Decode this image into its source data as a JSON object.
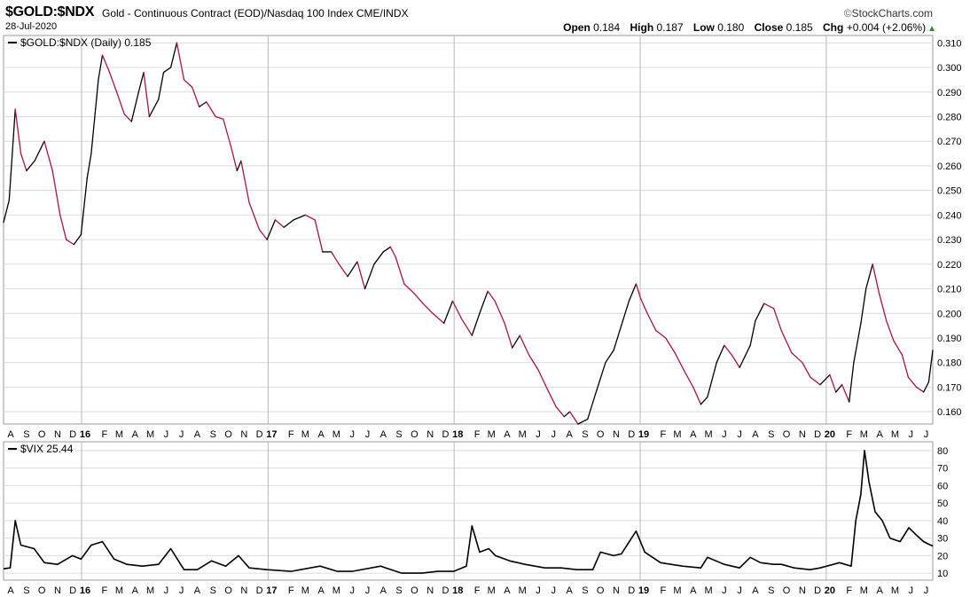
{
  "header": {
    "symbol": "$GOLD:$NDX",
    "description": "Gold - Continuous Contract (EOD)/Nasdaq 100 Index",
    "exchange": "CME/INDX",
    "date": "28-Jul-2020",
    "brand": "StockCharts.com",
    "brand_mark": "©",
    "ohlc": {
      "open_label": "Open",
      "open": "0.184",
      "high_label": "High",
      "high": "0.187",
      "low_label": "Low",
      "low": "0.180",
      "close_label": "Close",
      "close": "0.185",
      "chg_label": "Chg",
      "chg": "+0.004 (+2.06%)"
    },
    "change_direction": "up"
  },
  "chart_data": [
    {
      "type": "line",
      "legend": "$GOLD:$NDX (Daily) 0.185",
      "color_up": "#000000",
      "color_down": "#a8153a",
      "ylim": [
        0.155,
        0.313
      ],
      "yticks": [
        0.16,
        0.17,
        0.18,
        0.19,
        0.2,
        0.21,
        0.22,
        0.23,
        0.24,
        0.25,
        0.26,
        0.27,
        0.28,
        0.29,
        0.3,
        0.31
      ],
      "ytick_labels": [
        "0.160",
        "0.170",
        "0.180",
        "0.190",
        "0.200",
        "0.210",
        "0.220",
        "0.230",
        "0.240",
        "0.250",
        "0.260",
        "0.270",
        "0.280",
        "0.290",
        "0.300",
        "0.310"
      ],
      "xlim": [
        "2015-08-01",
        "2020-07-28"
      ],
      "x": [
        "2015-08-01",
        "2015-08-12",
        "2015-08-24",
        "2015-09-04",
        "2015-09-15",
        "2015-10-01",
        "2015-10-20",
        "2015-11-05",
        "2015-11-20",
        "2015-12-02",
        "2015-12-17",
        "2015-12-31",
        "2016-01-12",
        "2016-01-20",
        "2016-02-03",
        "2016-02-11",
        "2016-02-25",
        "2016-03-10",
        "2016-03-25",
        "2016-04-08",
        "2016-04-22",
        "2016-05-02",
        "2016-05-13",
        "2016-05-31",
        "2016-06-10",
        "2016-06-24",
        "2016-07-06",
        "2016-07-20",
        "2016-08-05",
        "2016-08-19",
        "2016-09-02",
        "2016-09-20",
        "2016-10-05",
        "2016-10-20",
        "2016-11-01",
        "2016-11-09",
        "2016-11-25",
        "2016-12-15",
        "2016-12-30",
        "2017-01-15",
        "2017-02-01",
        "2017-02-20",
        "2017-03-15",
        "2017-04-03",
        "2017-04-18",
        "2017-05-05",
        "2017-05-20",
        "2017-06-06",
        "2017-06-25",
        "2017-07-10",
        "2017-07-28",
        "2017-08-15",
        "2017-08-29",
        "2017-09-08",
        "2017-09-25",
        "2017-10-15",
        "2017-11-01",
        "2017-11-20",
        "2017-12-12",
        "2017-12-29",
        "2018-01-15",
        "2018-02-05",
        "2018-02-20",
        "2018-03-08",
        "2018-03-22",
        "2018-04-10",
        "2018-04-25",
        "2018-05-10",
        "2018-05-28",
        "2018-06-15",
        "2018-07-01",
        "2018-07-20",
        "2018-08-05",
        "2018-08-16",
        "2018-09-01",
        "2018-09-20",
        "2018-10-05",
        "2018-10-25",
        "2018-11-10",
        "2018-11-25",
        "2018-12-10",
        "2018-12-24",
        "2019-01-02",
        "2019-01-15",
        "2019-02-01",
        "2019-02-20",
        "2019-03-10",
        "2019-03-30",
        "2019-04-15",
        "2019-04-30",
        "2019-05-13",
        "2019-05-31",
        "2019-06-15",
        "2019-06-30",
        "2019-07-15",
        "2019-08-05",
        "2019-08-15",
        "2019-09-01",
        "2019-09-20",
        "2019-10-05",
        "2019-10-25",
        "2019-11-15",
        "2019-12-01",
        "2019-12-20",
        "2020-01-08",
        "2020-01-20",
        "2020-02-01",
        "2020-02-15",
        "2020-02-24",
        "2020-03-09",
        "2020-03-19",
        "2020-04-01",
        "2020-04-14",
        "2020-04-28",
        "2020-05-12",
        "2020-05-29",
        "2020-06-10",
        "2020-06-26",
        "2020-07-10",
        "2020-07-20",
        "2020-07-28"
      ],
      "values": [
        0.237,
        0.246,
        0.283,
        0.265,
        0.258,
        0.262,
        0.27,
        0.258,
        0.24,
        0.23,
        0.228,
        0.232,
        0.255,
        0.265,
        0.295,
        0.305,
        0.298,
        0.29,
        0.281,
        0.278,
        0.29,
        0.298,
        0.28,
        0.287,
        0.298,
        0.3,
        0.31,
        0.295,
        0.292,
        0.284,
        0.286,
        0.28,
        0.279,
        0.268,
        0.258,
        0.262,
        0.245,
        0.234,
        0.23,
        0.238,
        0.235,
        0.238,
        0.24,
        0.238,
        0.225,
        0.225,
        0.22,
        0.215,
        0.221,
        0.21,
        0.22,
        0.225,
        0.227,
        0.223,
        0.212,
        0.208,
        0.204,
        0.2,
        0.196,
        0.205,
        0.198,
        0.191,
        0.2,
        0.209,
        0.205,
        0.196,
        0.186,
        0.191,
        0.183,
        0.177,
        0.17,
        0.162,
        0.158,
        0.16,
        0.155,
        0.157,
        0.167,
        0.18,
        0.185,
        0.195,
        0.205,
        0.212,
        0.206,
        0.2,
        0.193,
        0.19,
        0.184,
        0.176,
        0.17,
        0.163,
        0.166,
        0.18,
        0.187,
        0.183,
        0.178,
        0.187,
        0.197,
        0.204,
        0.202,
        0.193,
        0.184,
        0.18,
        0.174,
        0.171,
        0.175,
        0.168,
        0.171,
        0.164,
        0.18,
        0.196,
        0.21,
        0.22,
        0.208,
        0.197,
        0.189,
        0.183,
        0.174,
        0.17,
        0.168,
        0.172,
        0.185
      ]
    },
    {
      "type": "line",
      "legend": "$VIX 25.44",
      "color": "#000000",
      "ylim": [
        6,
        85
      ],
      "yticks": [
        10,
        20,
        30,
        40,
        50,
        60,
        70,
        80
      ],
      "ytick_labels": [
        "10",
        "20",
        "30",
        "40",
        "50",
        "60",
        "70",
        "80"
      ],
      "xlim": [
        "2015-08-01",
        "2020-07-28"
      ],
      "x": [
        "2015-08-01",
        "2015-08-14",
        "2015-08-24",
        "2015-09-04",
        "2015-09-30",
        "2015-10-20",
        "2015-11-15",
        "2015-12-14",
        "2015-12-31",
        "2016-01-20",
        "2016-02-11",
        "2016-03-05",
        "2016-03-30",
        "2016-04-29",
        "2016-05-31",
        "2016-06-24",
        "2016-07-20",
        "2016-08-15",
        "2016-09-12",
        "2016-10-10",
        "2016-11-04",
        "2016-11-25",
        "2016-12-30",
        "2017-02-15",
        "2017-04-13",
        "2017-05-17",
        "2017-06-15",
        "2017-08-10",
        "2017-08-20",
        "2017-09-20",
        "2017-10-30",
        "2017-11-30",
        "2017-12-31",
        "2018-01-25",
        "2018-02-05",
        "2018-02-20",
        "2018-03-10",
        "2018-03-23",
        "2018-04-20",
        "2018-05-20",
        "2018-06-28",
        "2018-07-30",
        "2018-08-30",
        "2018-09-30",
        "2018-10-15",
        "2018-11-10",
        "2018-11-25",
        "2018-12-24",
        "2019-01-10",
        "2019-02-10",
        "2019-03-25",
        "2019-04-30",
        "2019-05-13",
        "2019-06-15",
        "2019-07-15",
        "2019-08-05",
        "2019-08-25",
        "2019-09-20",
        "2019-10-05",
        "2019-10-30",
        "2019-11-30",
        "2019-12-20",
        "2020-01-27",
        "2020-02-19",
        "2020-02-28",
        "2020-03-09",
        "2020-03-16",
        "2020-03-25",
        "2020-04-06",
        "2020-04-20",
        "2020-05-05",
        "2020-05-25",
        "2020-06-11",
        "2020-06-25",
        "2020-07-10",
        "2020-07-28"
      ],
      "values": [
        12.5,
        13,
        40,
        26,
        24,
        16,
        15,
        20,
        18,
        26,
        28,
        18,
        15,
        14,
        15,
        24,
        12,
        12,
        17,
        14,
        20,
        13,
        12,
        11,
        14,
        11,
        11,
        14,
        13,
        10,
        10,
        11,
        11,
        14,
        37,
        22,
        24,
        20,
        17,
        15,
        13,
        13,
        12,
        12,
        22,
        20,
        21,
        34,
        22,
        16,
        14,
        13,
        19,
        15,
        13,
        19,
        16,
        15,
        15,
        13,
        12,
        13,
        16,
        14,
        40,
        55,
        80,
        62,
        45,
        40,
        30,
        28,
        36,
        32,
        28,
        25.44
      ]
    }
  ],
  "x_axis": {
    "labels": [
      {
        "d": "2015-08-15",
        "t": "A"
      },
      {
        "d": "2015-09-15",
        "t": "S"
      },
      {
        "d": "2015-10-15",
        "t": "O"
      },
      {
        "d": "2015-11-15",
        "t": "N"
      },
      {
        "d": "2015-12-15",
        "t": "D"
      },
      {
        "d": "2016-01-08",
        "t": "16",
        "year": true
      },
      {
        "d": "2016-02-15",
        "t": "F"
      },
      {
        "d": "2016-03-15",
        "t": "M"
      },
      {
        "d": "2016-04-15",
        "t": "A"
      },
      {
        "d": "2016-05-15",
        "t": "M"
      },
      {
        "d": "2016-06-15",
        "t": "J"
      },
      {
        "d": "2016-07-15",
        "t": "J"
      },
      {
        "d": "2016-08-15",
        "t": "A"
      },
      {
        "d": "2016-09-15",
        "t": "S"
      },
      {
        "d": "2016-10-15",
        "t": "O"
      },
      {
        "d": "2016-11-15",
        "t": "N"
      },
      {
        "d": "2016-12-15",
        "t": "D"
      },
      {
        "d": "2017-01-08",
        "t": "17",
        "year": true
      },
      {
        "d": "2017-02-15",
        "t": "F"
      },
      {
        "d": "2017-03-15",
        "t": "M"
      },
      {
        "d": "2017-04-15",
        "t": "A"
      },
      {
        "d": "2017-05-15",
        "t": "M"
      },
      {
        "d": "2017-06-15",
        "t": "J"
      },
      {
        "d": "2017-07-15",
        "t": "J"
      },
      {
        "d": "2017-08-15",
        "t": "A"
      },
      {
        "d": "2017-09-15",
        "t": "S"
      },
      {
        "d": "2017-10-15",
        "t": "O"
      },
      {
        "d": "2017-11-15",
        "t": "N"
      },
      {
        "d": "2017-12-15",
        "t": "D"
      },
      {
        "d": "2018-01-08",
        "t": "18",
        "year": true
      },
      {
        "d": "2018-02-15",
        "t": "F"
      },
      {
        "d": "2018-03-15",
        "t": "M"
      },
      {
        "d": "2018-04-15",
        "t": "A"
      },
      {
        "d": "2018-05-15",
        "t": "M"
      },
      {
        "d": "2018-06-15",
        "t": "J"
      },
      {
        "d": "2018-07-15",
        "t": "J"
      },
      {
        "d": "2018-08-15",
        "t": "A"
      },
      {
        "d": "2018-09-15",
        "t": "S"
      },
      {
        "d": "2018-10-15",
        "t": "O"
      },
      {
        "d": "2018-11-15",
        "t": "N"
      },
      {
        "d": "2018-12-15",
        "t": "D"
      },
      {
        "d": "2019-01-08",
        "t": "19",
        "year": true
      },
      {
        "d": "2019-02-15",
        "t": "F"
      },
      {
        "d": "2019-03-15",
        "t": "M"
      },
      {
        "d": "2019-04-15",
        "t": "A"
      },
      {
        "d": "2019-05-15",
        "t": "M"
      },
      {
        "d": "2019-06-15",
        "t": "J"
      },
      {
        "d": "2019-07-15",
        "t": "J"
      },
      {
        "d": "2019-08-15",
        "t": "A"
      },
      {
        "d": "2019-09-15",
        "t": "S"
      },
      {
        "d": "2019-10-15",
        "t": "O"
      },
      {
        "d": "2019-11-15",
        "t": "N"
      },
      {
        "d": "2019-12-15",
        "t": "D"
      },
      {
        "d": "2020-01-08",
        "t": "20",
        "year": true
      },
      {
        "d": "2020-02-15",
        "t": "F"
      },
      {
        "d": "2020-03-15",
        "t": "M"
      },
      {
        "d": "2020-04-15",
        "t": "A"
      },
      {
        "d": "2020-05-15",
        "t": "M"
      },
      {
        "d": "2020-06-15",
        "t": "J"
      },
      {
        "d": "2020-07-15",
        "t": "J"
      }
    ],
    "year_gridlines": [
      "2016-01-01",
      "2017-01-01",
      "2018-01-01",
      "2019-01-01",
      "2020-01-01"
    ]
  }
}
